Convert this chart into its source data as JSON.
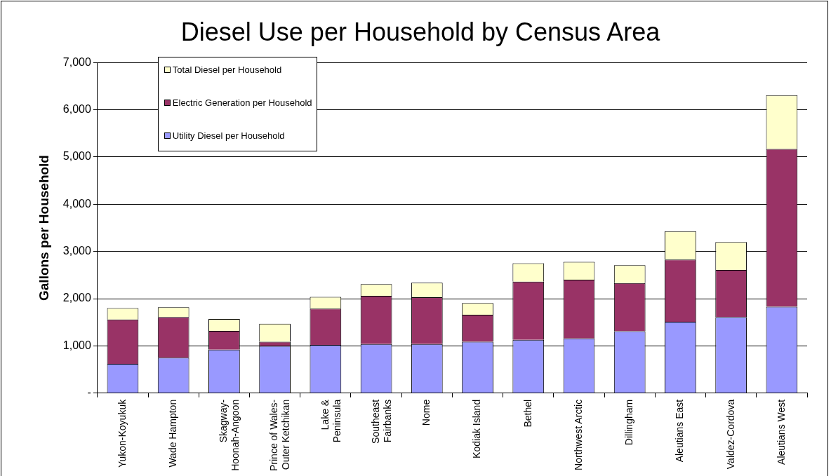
{
  "chart_data": {
    "type": "bar",
    "title": "Diesel Use per Household by Census Area",
    "ylabel": "Gallons per Household",
    "categories": [
      "Yukon-Koyukuk",
      "Wade Hampton",
      "Skagway-\nHoonah-Angoon",
      "Prince of Wales-\nOuter Ketchikan",
      "Lake &\nPeninsula",
      "Southeast\nFairbanks",
      "Nome",
      "Kodiak Island",
      "Bethel",
      "Northwest Arctic",
      "Dillingham",
      "Aleutians East",
      "Valdez-Cordova",
      "Aleutians West"
    ],
    "stacked": true,
    "series": [
      {
        "name": "Utility Diesel per Household",
        "color": "#9999ff",
        "values": [
          620,
          750,
          920,
          1000,
          1020,
          1040,
          1040,
          1090,
          1130,
          1160,
          1310,
          1510,
          1610,
          1830
        ]
      },
      {
        "name": "Electric Generation per Household",
        "color": "#993366",
        "values": [
          940,
          860,
          400,
          90,
          770,
          1020,
          990,
          570,
          1230,
          1240,
          1020,
          1320,
          1000,
          3340
        ]
      },
      {
        "name": "Total Diesel per Household",
        "color": "#ffffcc",
        "values": [
          240,
          210,
          250,
          380,
          250,
          250,
          310,
          250,
          390,
          380,
          380,
          600,
          590,
          1140
        ]
      }
    ],
    "ylim": [
      0,
      7000
    ],
    "yticks": [
      {
        "value": 0,
        "label": "-"
      },
      {
        "value": 1000,
        "label": "1,000"
      },
      {
        "value": 2000,
        "label": "2,000"
      },
      {
        "value": 3000,
        "label": "3,000"
      },
      {
        "value": 4000,
        "label": "4,000"
      },
      {
        "value": 5000,
        "label": "5,000"
      },
      {
        "value": 6000,
        "label": "6,000"
      },
      {
        "value": 7000,
        "label": "7,000"
      }
    ],
    "grid": "y",
    "legend": "top left"
  }
}
